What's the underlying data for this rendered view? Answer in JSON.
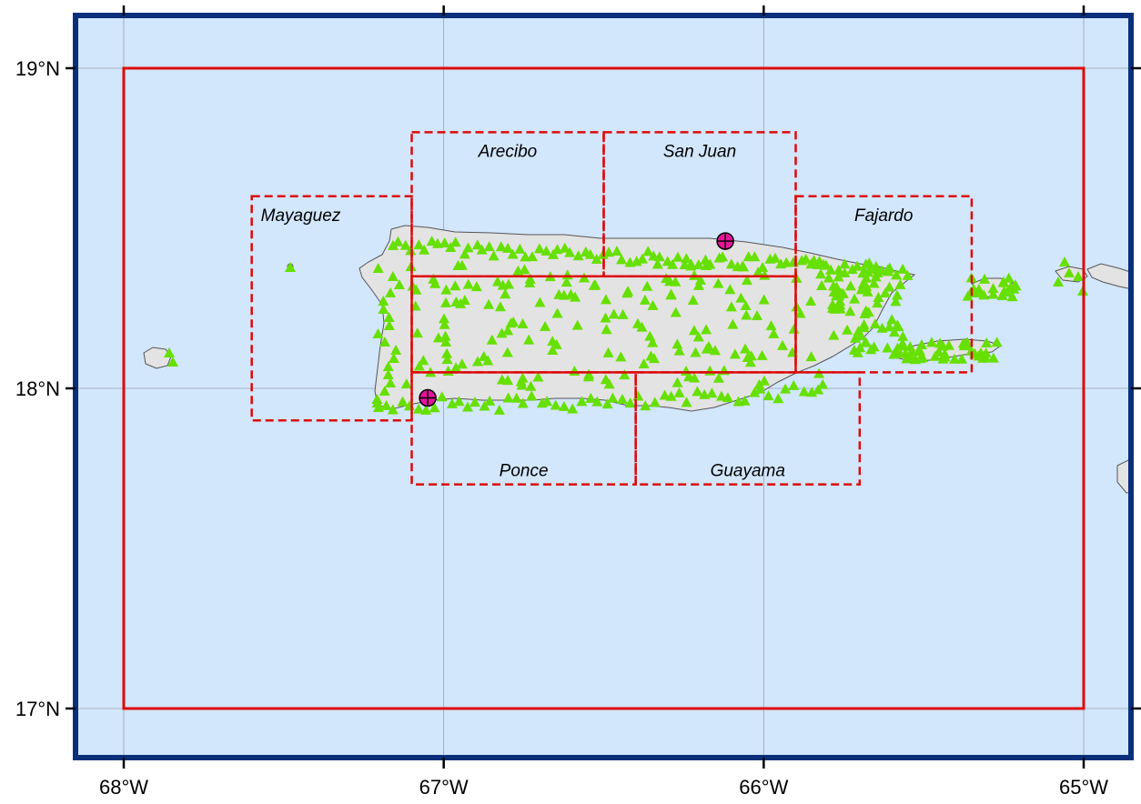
{
  "map": {
    "lon_range": [
      -68.15,
      -64.85
    ],
    "lat_range": [
      16.85,
      19.15
    ],
    "lon_ticks": [
      {
        "value": -68,
        "label": "68°W"
      },
      {
        "value": -67,
        "label": "67°W"
      },
      {
        "value": -66,
        "label": "66°W"
      },
      {
        "value": -65,
        "label": "65°W"
      }
    ],
    "lat_ticks": [
      {
        "value": 19,
        "label": "19°N"
      },
      {
        "value": 18,
        "label": "18°N"
      },
      {
        "value": 17,
        "label": "17°N"
      }
    ],
    "outer_box": {
      "lon": [
        -68,
        -65
      ],
      "lat": [
        17,
        19
      ]
    },
    "regions": [
      {
        "name": "Mayaguez",
        "lon": [
          -67.6,
          -67.1
        ],
        "lat": [
          17.9,
          18.6
        ]
      },
      {
        "name": "Arecibo",
        "lon": [
          -67.1,
          -66.5
        ],
        "lat": [
          18.35,
          18.8
        ]
      },
      {
        "name": "San Juan",
        "lon": [
          -66.5,
          -65.9
        ],
        "lat": [
          18.35,
          18.8
        ]
      },
      {
        "name": "Fajardo",
        "lon": [
          -65.9,
          -65.35
        ],
        "lat": [
          18.05,
          18.6
        ]
      },
      {
        "name": "Ponce",
        "lon": [
          -67.1,
          -66.4
        ],
        "lat": [
          17.7,
          18.05
        ]
      },
      {
        "name": "Guayama",
        "lon": [
          -66.4,
          -65.7
        ],
        "lat": [
          17.7,
          18.05
        ]
      }
    ],
    "central_box": {
      "lon": [
        -67.1,
        -65.9
      ],
      "lat": [
        18.05,
        18.35
      ]
    },
    "stations": [
      {
        "name": "San Juan",
        "lon": -66.12,
        "lat": 18.46
      },
      {
        "name": "Ponce",
        "lon": -67.05,
        "lat": 17.97
      }
    ],
    "colors": {
      "ocean": "#d2e6fc",
      "land": "#e3e3e3",
      "coast": "#555555",
      "frame": "#0a2f7a",
      "box": "#dd0a0a",
      "triangle": "#66e000",
      "station": "#e6139b",
      "grid": "#9aa3ad"
    }
  }
}
